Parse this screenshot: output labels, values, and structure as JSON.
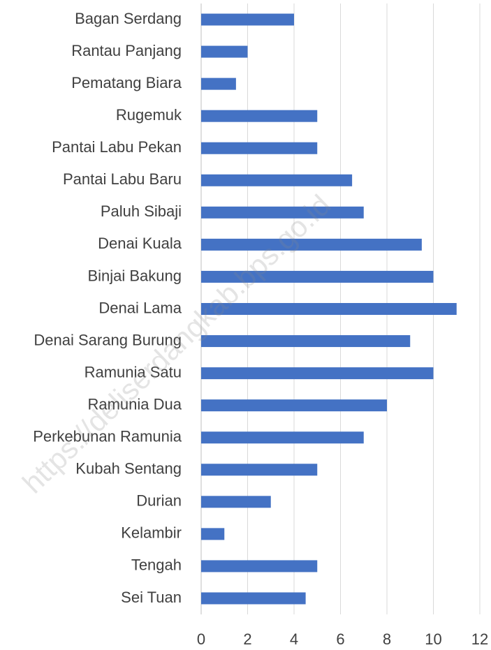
{
  "chart_data": {
    "type": "barh",
    "categories": [
      "Bagan Serdang",
      "Rantau Panjang",
      "Pematang Biara",
      "Rugemuk",
      "Pantai Labu Pekan",
      "Pantai Labu Baru",
      "Paluh Sibaji",
      "Denai Kuala",
      "Binjai Bakung",
      "Denai Lama",
      "Denai Sarang Burung",
      "Ramunia Satu",
      "Ramunia Dua",
      "Perkebunan Ramunia",
      "Kubah Sentang",
      "Durian",
      "Kelambir",
      "Tengah",
      "Sei Tuan"
    ],
    "values": [
      4,
      2,
      1.5,
      5,
      5,
      6.5,
      7,
      9.5,
      10,
      11,
      9,
      10,
      8,
      7,
      5,
      3,
      1,
      5,
      4.5
    ],
    "color": "#4472c4",
    "xlim": [
      0,
      12
    ],
    "xticks": [
      0,
      2,
      4,
      6,
      8,
      10,
      12
    ],
    "grid": true,
    "watermark": "https://deliserdangkab.bps.go.id"
  }
}
